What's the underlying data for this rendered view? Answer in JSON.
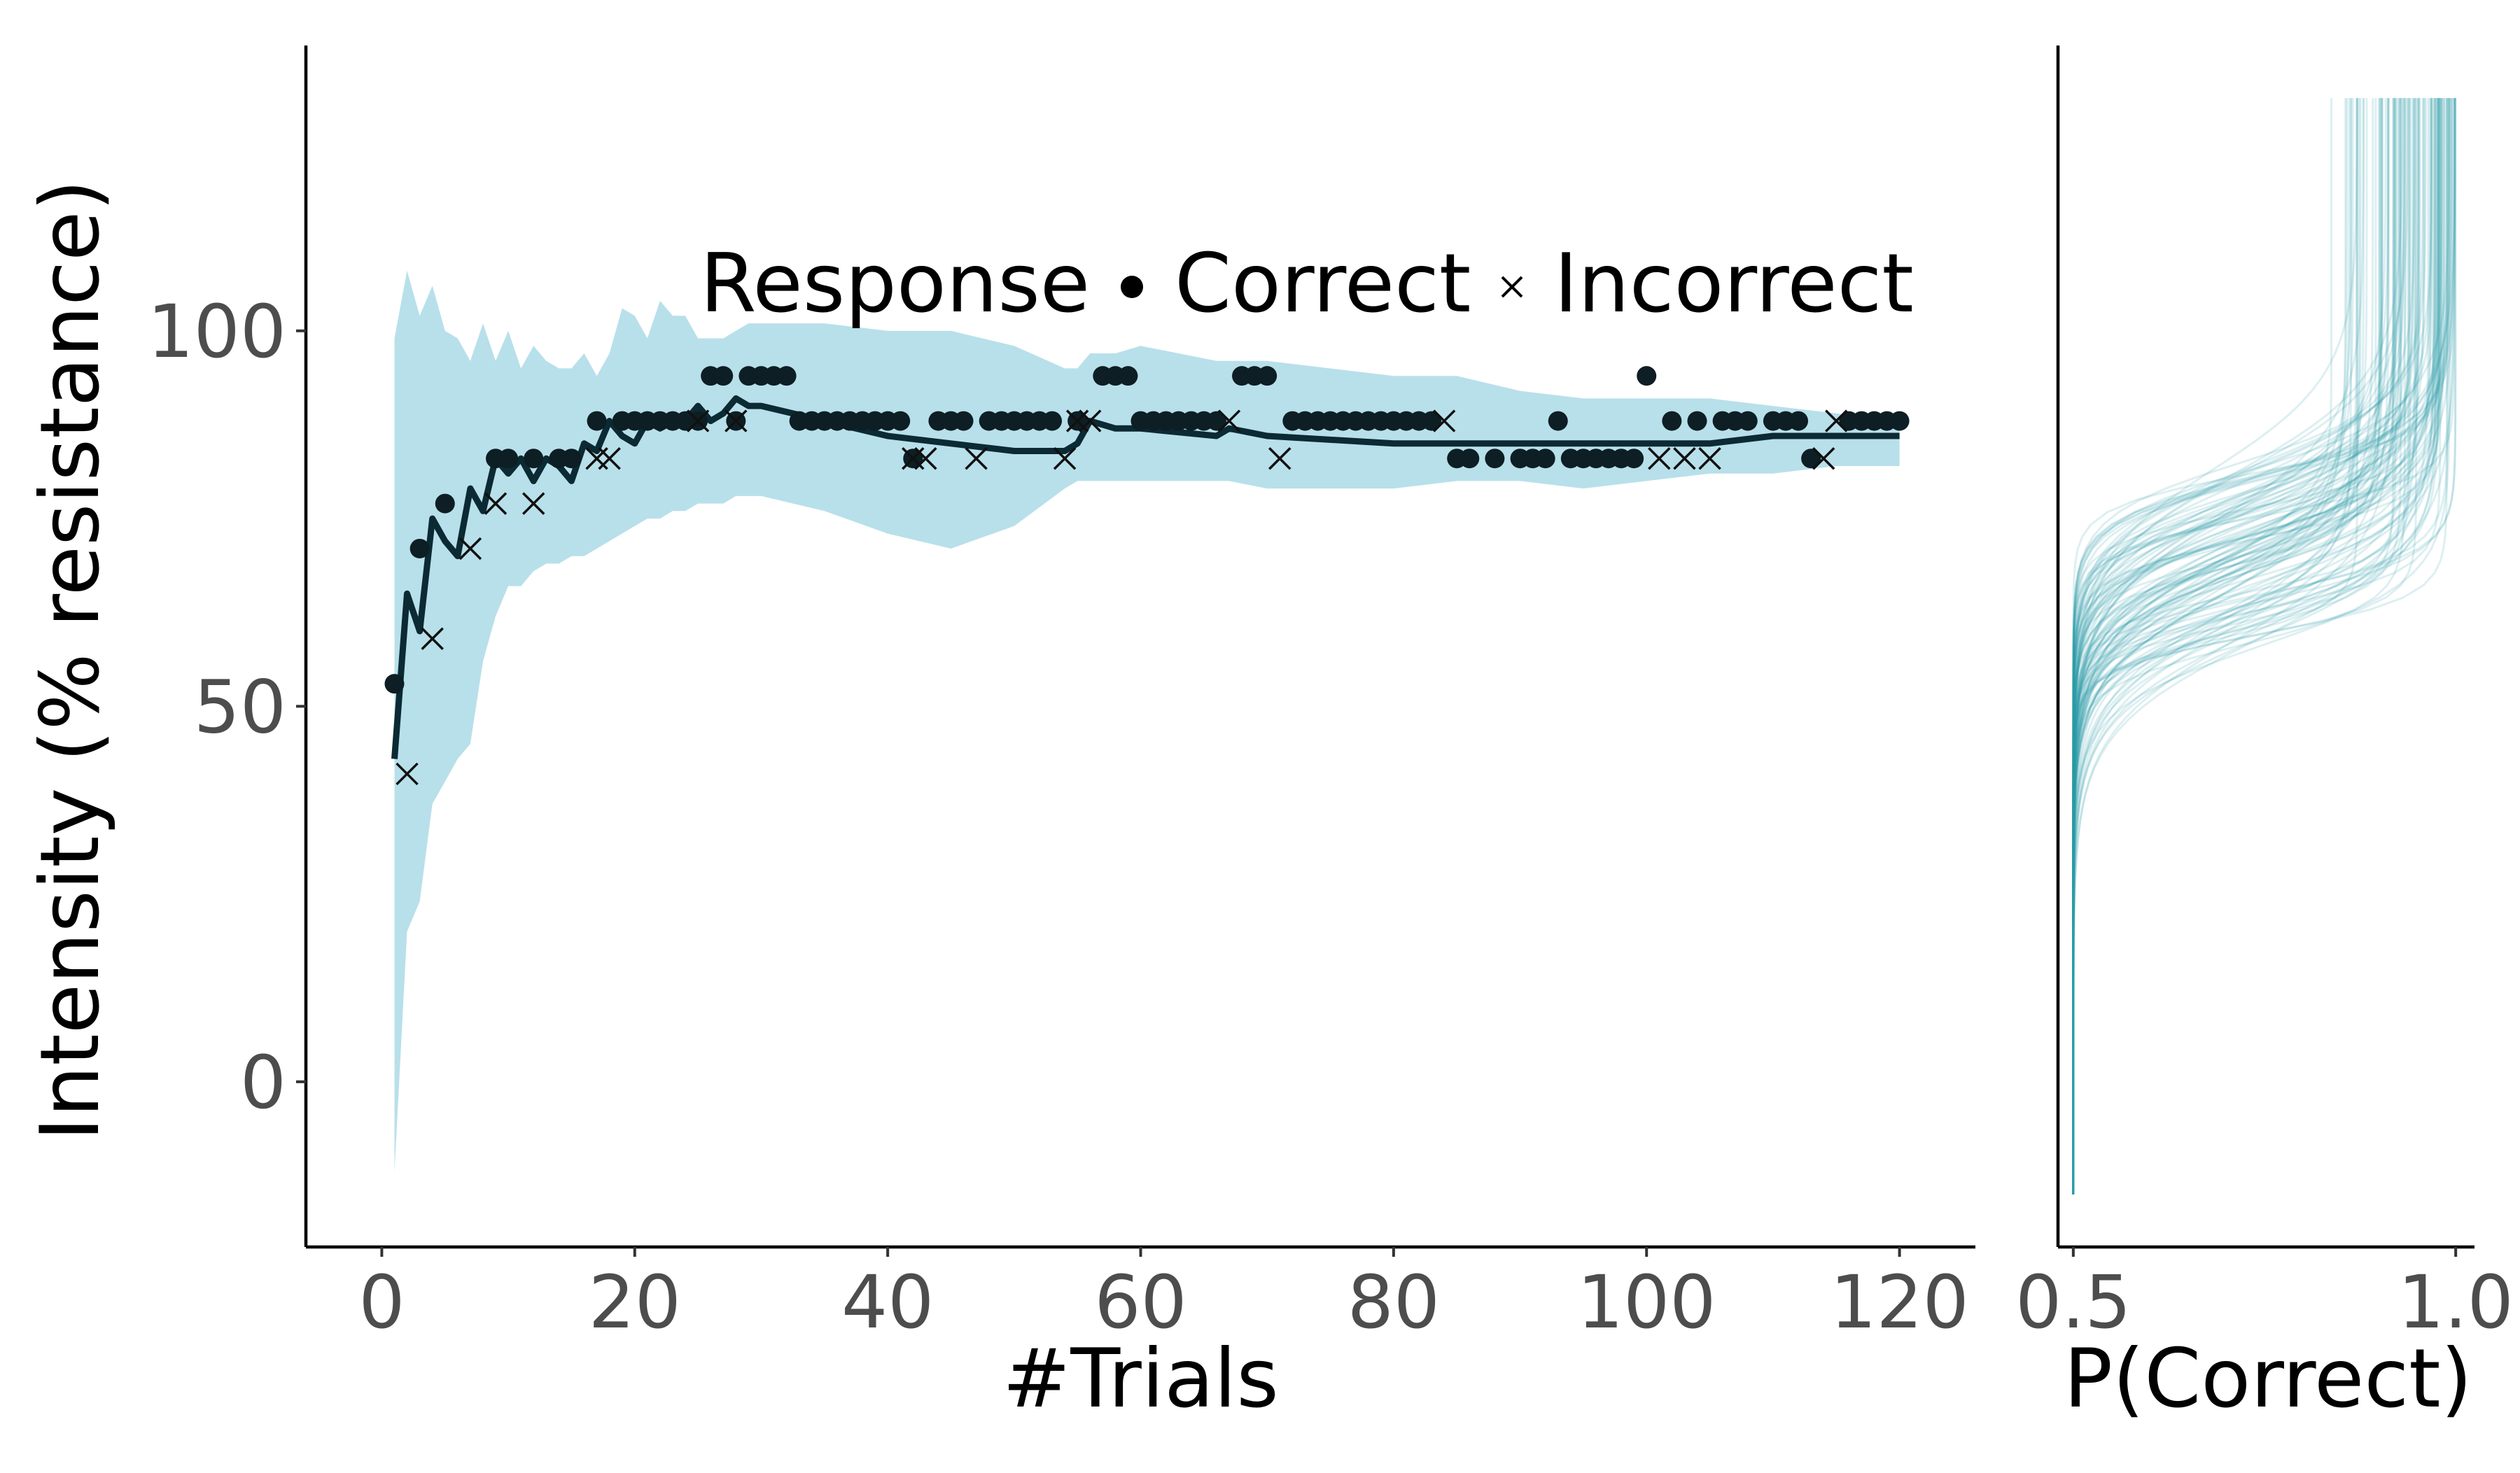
{
  "chart_data": [
    {
      "type": "line",
      "xlabel": "#Trials",
      "ylabel": "Intensity (% resistance)",
      "xlim": [
        -6,
        126
      ],
      "ylim": [
        -22,
        138
      ],
      "x_ticks": [
        0,
        20,
        40,
        60,
        80,
        100,
        120
      ],
      "y_ticks": [
        0,
        50,
        100
      ],
      "grid": false,
      "legend": {
        "title": "Response",
        "placement": "top-right",
        "entries": [
          {
            "symbol": "dot",
            "label": "Correct"
          },
          {
            "symbol": "cross",
            "label": "Incorrect"
          }
        ]
      },
      "colors": {
        "band": "#b8e0ea",
        "line": "#0b2a33",
        "points": "#0d1e24",
        "axis": "#000000"
      },
      "threshold_estimate": {
        "x": [
          1,
          2,
          3,
          4,
          5,
          6,
          7,
          8,
          9,
          10,
          11,
          12,
          13,
          14,
          15,
          16,
          17,
          18,
          19,
          20,
          21,
          22,
          23,
          24,
          25,
          26,
          27,
          28,
          29,
          30,
          35,
          40,
          45,
          50,
          54,
          55,
          56,
          58,
          60,
          66,
          67,
          70,
          80,
          85,
          90,
          95,
          100,
          105,
          110,
          115,
          120
        ],
        "y": [
          43,
          65,
          60,
          75,
          72,
          70,
          79,
          76,
          83,
          81,
          83,
          80,
          83,
          82,
          80,
          85,
          84,
          88,
          86,
          85,
          88,
          87,
          88,
          88,
          90,
          88,
          89,
          91,
          90,
          90,
          88,
          86,
          85,
          84,
          84,
          85,
          88,
          87,
          87,
          86,
          87,
          86,
          85,
          85,
          85,
          85,
          85,
          85,
          86,
          86,
          86
        ],
        "band_lower": [
          -12,
          20,
          24,
          37,
          40,
          43,
          45,
          56,
          62,
          66,
          66,
          68,
          69,
          69,
          70,
          70,
          71,
          72,
          73,
          74,
          75,
          75,
          76,
          76,
          77,
          77,
          77,
          78,
          78,
          78,
          76,
          73,
          71,
          74,
          79,
          80,
          80,
          80,
          80,
          80,
          80,
          79,
          79,
          80,
          80,
          79,
          80,
          81,
          81,
          82,
          82
        ],
        "band_upper": [
          99,
          108,
          102,
          106,
          100,
          99,
          96,
          101,
          96,
          100,
          95,
          98,
          96,
          95,
          95,
          97,
          94,
          97,
          103,
          102,
          99,
          104,
          102,
          102,
          99,
          99,
          99,
          100,
          101,
          101,
          101,
          100,
          100,
          98,
          95,
          95,
          97,
          97,
          98,
          96,
          96,
          96,
          94,
          94,
          92,
          91,
          91,
          91,
          90,
          89,
          88
        ]
      },
      "responses_correct": {
        "x": [
          1,
          3,
          5,
          9,
          10,
          12,
          14,
          15,
          17,
          19,
          20,
          21,
          22,
          23,
          24,
          25,
          26,
          27,
          28,
          29,
          30,
          31,
          32,
          33,
          34,
          35,
          36,
          37,
          38,
          39,
          40,
          41,
          42,
          44,
          45,
          46,
          48,
          49,
          50,
          51,
          52,
          53,
          55,
          57,
          58,
          59,
          60,
          61,
          62,
          63,
          64,
          65,
          66,
          68,
          69,
          70,
          72,
          73,
          74,
          75,
          76,
          77,
          78,
          79,
          80,
          81,
          82,
          83,
          85,
          86,
          88,
          90,
          91,
          92,
          93,
          94,
          95,
          96,
          97,
          98,
          99,
          100,
          102,
          104,
          106,
          107,
          108,
          110,
          111,
          112,
          113,
          116,
          117,
          118,
          119,
          120
        ],
        "y": [
          53,
          71,
          77,
          83,
          83,
          83,
          83,
          83,
          88,
          88,
          88,
          88,
          88,
          88,
          88,
          88,
          94,
          94,
          88,
          94,
          94,
          94,
          94,
          88,
          88,
          88,
          88,
          88,
          88,
          88,
          88,
          88,
          83,
          88,
          88,
          88,
          88,
          88,
          88,
          88,
          88,
          88,
          88,
          94,
          94,
          94,
          88,
          88,
          88,
          88,
          88,
          88,
          88,
          94,
          94,
          94,
          88,
          88,
          88,
          88,
          88,
          88,
          88,
          88,
          88,
          88,
          88,
          88,
          83,
          83,
          83,
          83,
          83,
          83,
          88,
          83,
          83,
          83,
          83,
          83,
          83,
          94,
          88,
          88,
          88,
          88,
          88,
          88,
          88,
          88,
          83,
          88,
          88,
          88,
          88,
          88
        ]
      },
      "responses_incorrect": {
        "x": [
          2,
          4,
          7,
          9,
          12,
          17,
          18,
          25,
          28,
          42,
          43,
          47,
          54,
          55,
          56,
          67,
          71,
          84,
          101,
          103,
          105,
          114,
          115
        ],
        "y": [
          41,
          59,
          71,
          77,
          77,
          83,
          83,
          88,
          88,
          83,
          83,
          83,
          83,
          88,
          88,
          88,
          83,
          88,
          83,
          83,
          83,
          83,
          88
        ]
      }
    },
    {
      "type": "line",
      "xlabel": "P(Correct)",
      "ylabel": "",
      "xlim": [
        0.48,
        1.02
      ],
      "x_ticks": [
        "0.5",
        "1.0"
      ],
      "grid": false,
      "colors": {
        "curves": "#2a9aaa"
      },
      "curve_family": {
        "y_range": [
          -15,
          131
        ],
        "count": 120,
        "threshold_range": [
          58,
          83
        ],
        "slope_range": [
          2.2,
          6.5
        ],
        "max_p_range": [
          0.815,
          1.0
        ]
      }
    }
  ]
}
